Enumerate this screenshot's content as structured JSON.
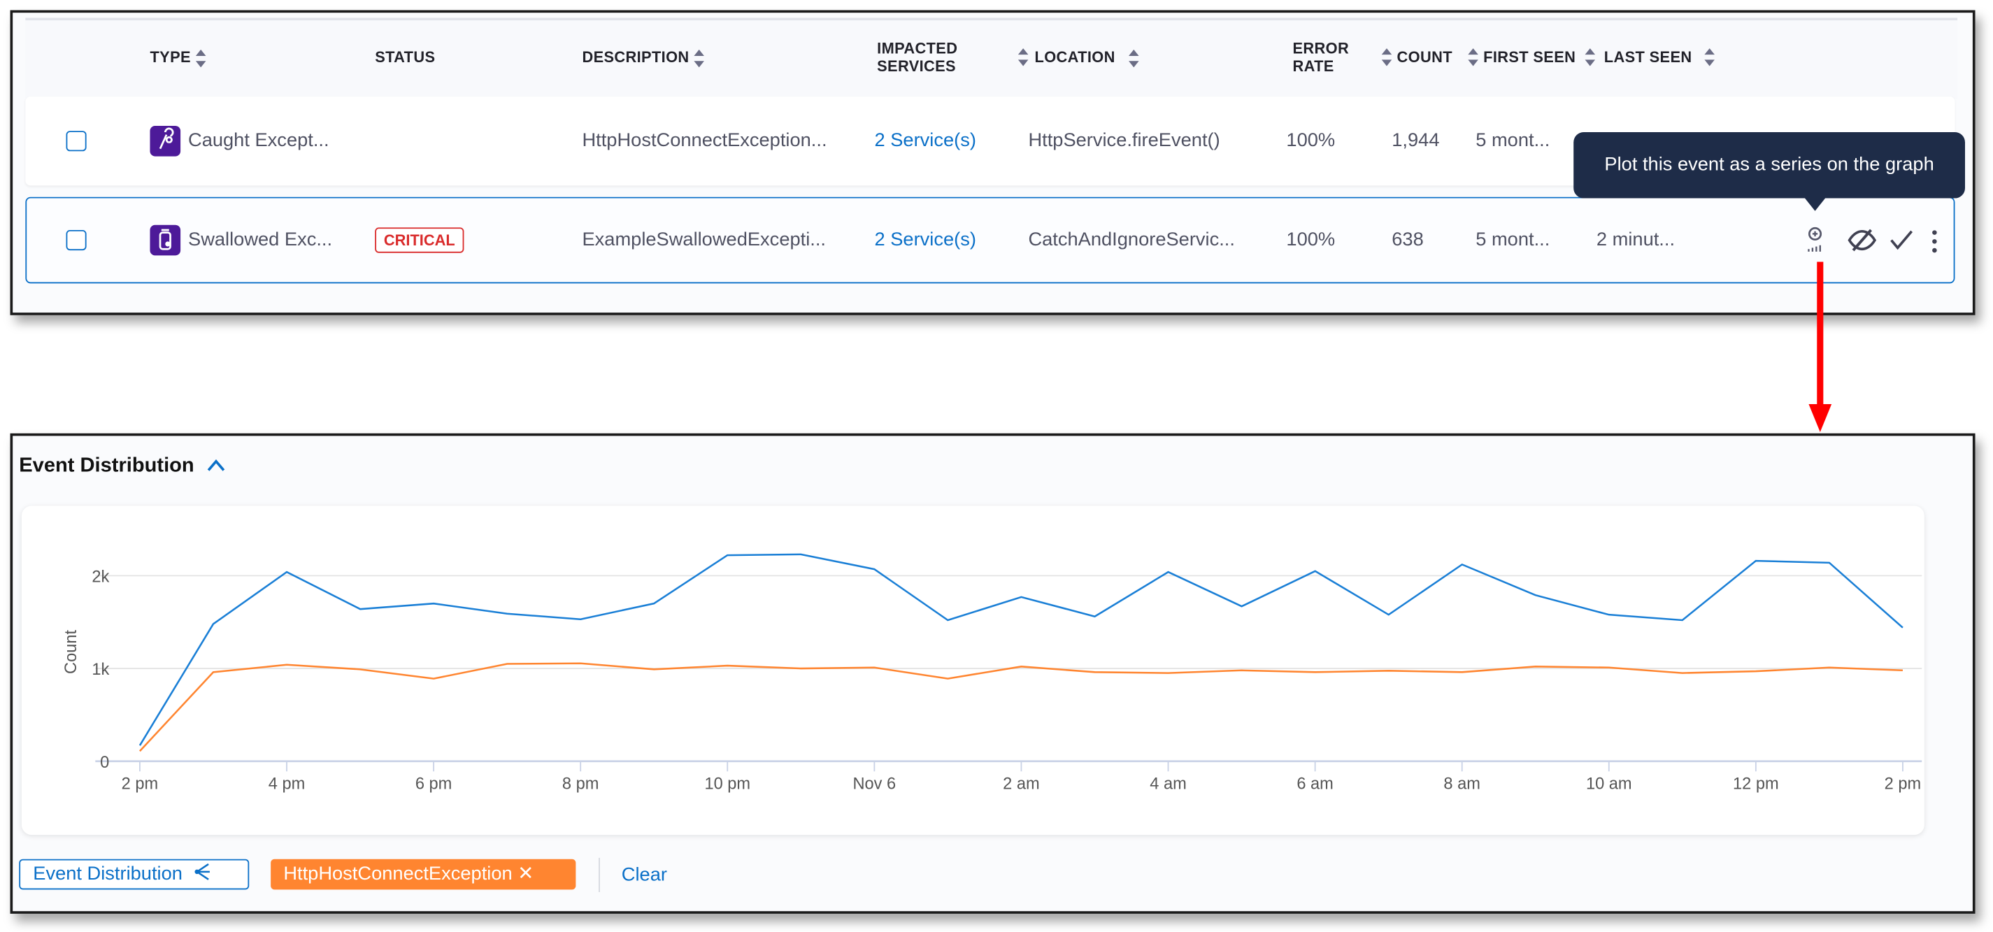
{
  "table": {
    "columns": [
      {
        "label": "TYPE",
        "sortable": true
      },
      {
        "label": "STATUS",
        "sortable": false
      },
      {
        "label": "DESCRIPTION",
        "sortable": true
      },
      {
        "label": "IMPACTED SERVICES",
        "sortable": true
      },
      {
        "label": "LOCATION",
        "sortable": true
      },
      {
        "label": "ERROR RATE",
        "sortable": true
      },
      {
        "label": "COUNT",
        "sortable": true
      },
      {
        "label": "FIRST SEEN",
        "sortable": true
      },
      {
        "label": "LAST SEEN",
        "sortable": true
      }
    ],
    "rows": [
      {
        "type": "Caught Except...",
        "type_icon": "caught-exception-icon",
        "status": "",
        "description": "HttpHostConnectException...",
        "impacted": "2 Service(s)",
        "location": "HttpService.fireEvent()",
        "error_rate": "100%",
        "count": "1,944",
        "first_seen": "5 mont...",
        "last_seen": ""
      },
      {
        "type": "Swallowed Exc...",
        "type_icon": "swallowed-exception-icon",
        "status": "CRITICAL",
        "description": "ExampleSwallowedExcepti...",
        "impacted": "2 Service(s)",
        "location": "CatchAndIgnoreServic...",
        "error_rate": "100%",
        "count": "638",
        "first_seen": "5 mont...",
        "last_seen": "2 minut...",
        "selected": true
      }
    ]
  },
  "tooltip": {
    "text": "Plot this event as a series on the graph"
  },
  "distribution": {
    "title": "Event Distribution",
    "chips": {
      "series_button": "Event Distribution",
      "event_chip": "HttpHostConnectException",
      "clear": "Clear"
    }
  },
  "colors": {
    "accent": "#0b70c8",
    "critical": "#d92b2b",
    "orange": "#ff8530",
    "blue_series": "#1a7fd6",
    "tooltip_bg": "#1e2c48",
    "type_icon_bg": "#4d1a99"
  },
  "chart_data": {
    "type": "line",
    "ylabel": "Count",
    "xlabel": "",
    "ylim": [
      0,
      2400
    ],
    "y_ticks": [
      "0",
      "1k",
      "2k"
    ],
    "y_tick_values": [
      0,
      1000,
      2000
    ],
    "x_tick_labels": [
      "2 pm",
      "4 pm",
      "6 pm",
      "8 pm",
      "10 pm",
      "Nov 6",
      "2 am",
      "4 am",
      "6 am",
      "8 am",
      "10 am",
      "12 pm",
      "2 pm"
    ],
    "x": [
      "2 pm",
      "3 pm",
      "4 pm",
      "5 pm",
      "6 pm",
      "7 pm",
      "8 pm",
      "9 pm",
      "10 pm",
      "11 pm",
      "Nov 6",
      "1 am",
      "2 am",
      "3 am",
      "4 am",
      "5 am",
      "6 am",
      "7 am",
      "8 am",
      "9 am",
      "10 am",
      "11 am",
      "12 pm",
      "1 pm",
      "2 pm"
    ],
    "grid": true,
    "series": [
      {
        "name": "Event Distribution",
        "color": "#1a7fd6",
        "values": [
          170,
          1480,
          2040,
          1640,
          1700,
          1590,
          1530,
          1700,
          2220,
          2230,
          2070,
          1520,
          1770,
          1560,
          2040,
          1670,
          2050,
          1580,
          2120,
          1790,
          1580,
          1520,
          2160,
          2140,
          1440
        ]
      },
      {
        "name": "HttpHostConnectException",
        "color": "#ff8530",
        "values": [
          110,
          960,
          1040,
          990,
          890,
          1050,
          1055,
          990,
          1030,
          1000,
          1010,
          890,
          1020,
          960,
          950,
          980,
          960,
          975,
          960,
          1020,
          1010,
          950,
          970,
          1010,
          980
        ]
      }
    ]
  }
}
